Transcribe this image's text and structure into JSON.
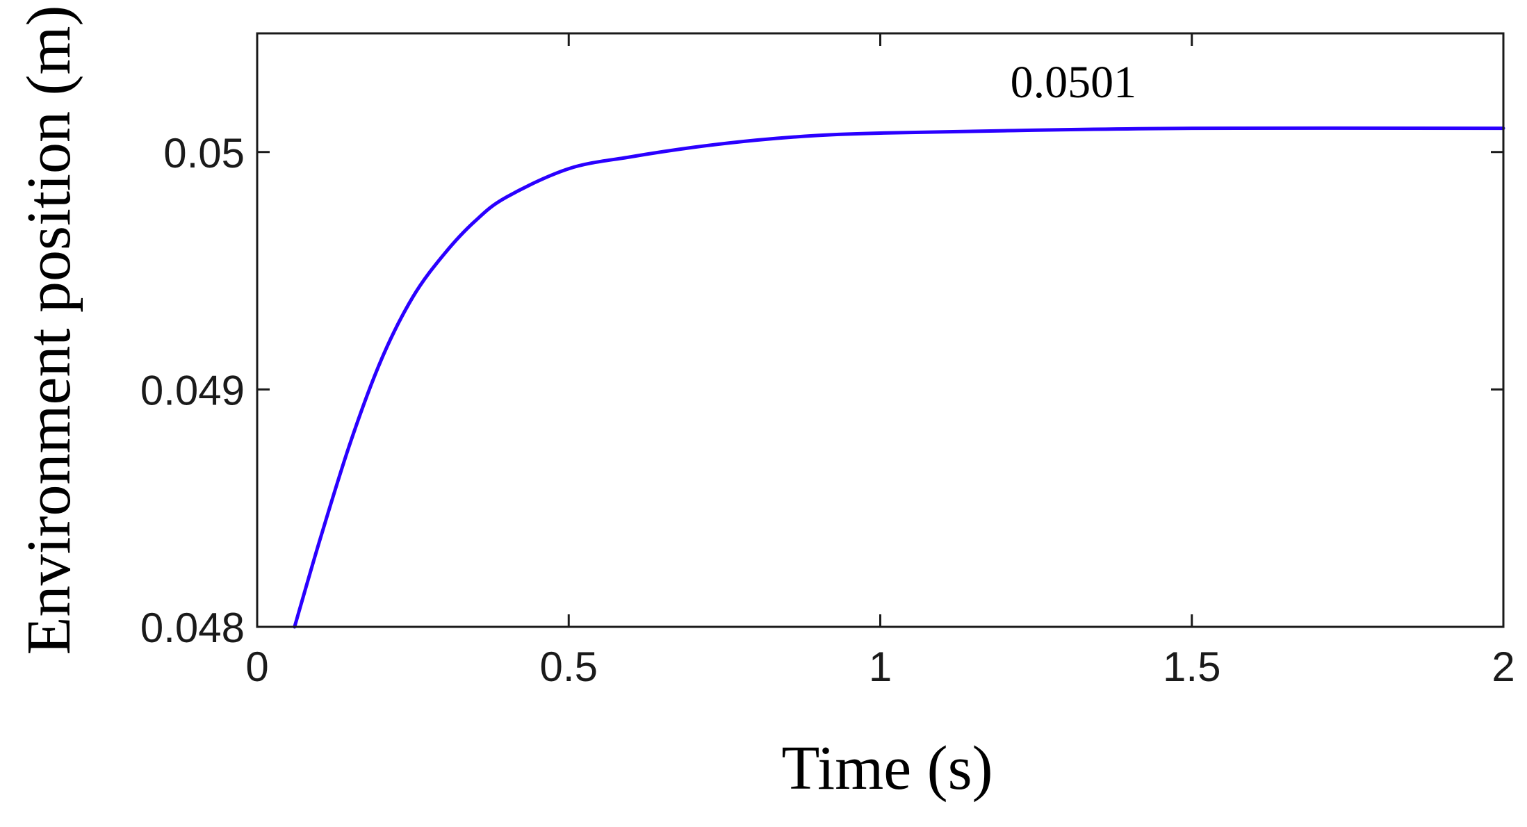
{
  "chart_data": {
    "type": "line",
    "title": "",
    "xlabel": "Time (s)",
    "ylabel": "Environment position (m)",
    "xlim": [
      0,
      2
    ],
    "ylim": [
      0.048,
      0.0505
    ],
    "x_ticks": [
      0,
      0.5,
      1,
      1.5,
      2
    ],
    "x_tick_labels": [
      "0",
      "0.5",
      "1",
      "1.5",
      "2"
    ],
    "y_ticks": [
      0.048,
      0.049,
      0.05
    ],
    "y_tick_labels": [
      "0.048",
      "0.049",
      "0.05"
    ],
    "grid": false,
    "box": true,
    "series": [
      {
        "color": "#2a00ff",
        "x": [
          0.06,
          0.1,
          0.15,
          0.2,
          0.25,
          0.3,
          0.35,
          0.4,
          0.5,
          0.6,
          0.7,
          0.8,
          0.9,
          1.0,
          1.2,
          1.5,
          2.0
        ],
        "y": [
          0.048,
          0.04836,
          0.04878,
          0.04913,
          0.04939,
          0.04957,
          0.04971,
          0.04981,
          0.04993,
          0.04998,
          0.05002,
          0.05005,
          0.05007,
          0.05008,
          0.05009,
          0.0501,
          0.0501
        ]
      }
    ],
    "annotations": [
      {
        "text": "0.0501",
        "x": 1.31,
        "y": 0.05023
      }
    ]
  }
}
